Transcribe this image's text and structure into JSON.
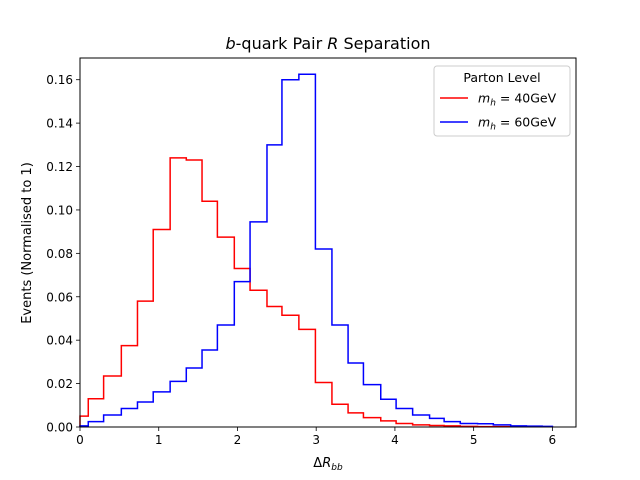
{
  "chart_data": {
    "type": "line",
    "step": "histogram",
    "title": {
      "pre": "b",
      "mid": "-quark Pair ",
      "italic": "R",
      "post": " Separation"
    },
    "xlabel": {
      "delta": "Δ",
      "var": "R",
      "sub": "bb"
    },
    "ylabel": "Events (Normalised to 1)",
    "xlim": [
      0,
      6.3
    ],
    "ylim": [
      0,
      0.17
    ],
    "xticks": [
      "0",
      "1",
      "2",
      "3",
      "4",
      "5",
      "6"
    ],
    "yticks": [
      "0.00",
      "0.02",
      "0.04",
      "0.06",
      "0.08",
      "0.10",
      "0.12",
      "0.14",
      "0.16"
    ],
    "grid": false,
    "legend": {
      "title": "Parton Level",
      "placement": "top-right"
    },
    "series": [
      {
        "name": "m_h = 40GeV",
        "label": {
          "m": "m",
          "sub": "h",
          "rest": " = 40GeV"
        },
        "color": "#ff0000",
        "edges": [
          0,
          0.105,
          0.3,
          0.525,
          0.73,
          0.93,
          1.145,
          1.35,
          1.55,
          1.745,
          1.96,
          2.16,
          2.375,
          2.565,
          2.78,
          2.99,
          3.2,
          3.405,
          3.6,
          3.82,
          4.015,
          4.225,
          4.44,
          4.625,
          4.83,
          5.05,
          5.25,
          5.47,
          5.67,
          5.87,
          6.0
        ],
        "values": [
          0.005,
          0.013,
          0.0235,
          0.0375,
          0.058,
          0.091,
          0.124,
          0.123,
          0.104,
          0.0875,
          0.073,
          0.063,
          0.0555,
          0.0515,
          0.045,
          0.0205,
          0.0105,
          0.0065,
          0.0043,
          0.0028,
          0.0016,
          0.001,
          0.0007,
          0.0005,
          0.0003,
          0.0002,
          0.0002,
          0.0001,
          0.0001,
          0.0001
        ]
      },
      {
        "name": "m_h = 60GeV",
        "label": {
          "m": "m",
          "sub": "h",
          "rest": " = 60GeV"
        },
        "color": "#0000ff",
        "edges": [
          0,
          0.105,
          0.3,
          0.525,
          0.73,
          0.93,
          1.145,
          1.35,
          1.55,
          1.745,
          1.96,
          2.16,
          2.375,
          2.565,
          2.78,
          2.99,
          3.2,
          3.405,
          3.6,
          3.82,
          4.015,
          4.225,
          4.44,
          4.625,
          4.83,
          5.05,
          5.25,
          5.47,
          5.67,
          5.87,
          6.0
        ],
        "values": [
          0.0005,
          0.0025,
          0.0055,
          0.0085,
          0.0115,
          0.0162,
          0.021,
          0.0272,
          0.0355,
          0.047,
          0.067,
          0.0945,
          0.13,
          0.16,
          0.1625,
          0.082,
          0.047,
          0.0295,
          0.0195,
          0.0128,
          0.0085,
          0.0055,
          0.004,
          0.0025,
          0.0016,
          0.0015,
          0.001,
          0.0005,
          0.0004,
          0.0003
        ]
      }
    ]
  }
}
